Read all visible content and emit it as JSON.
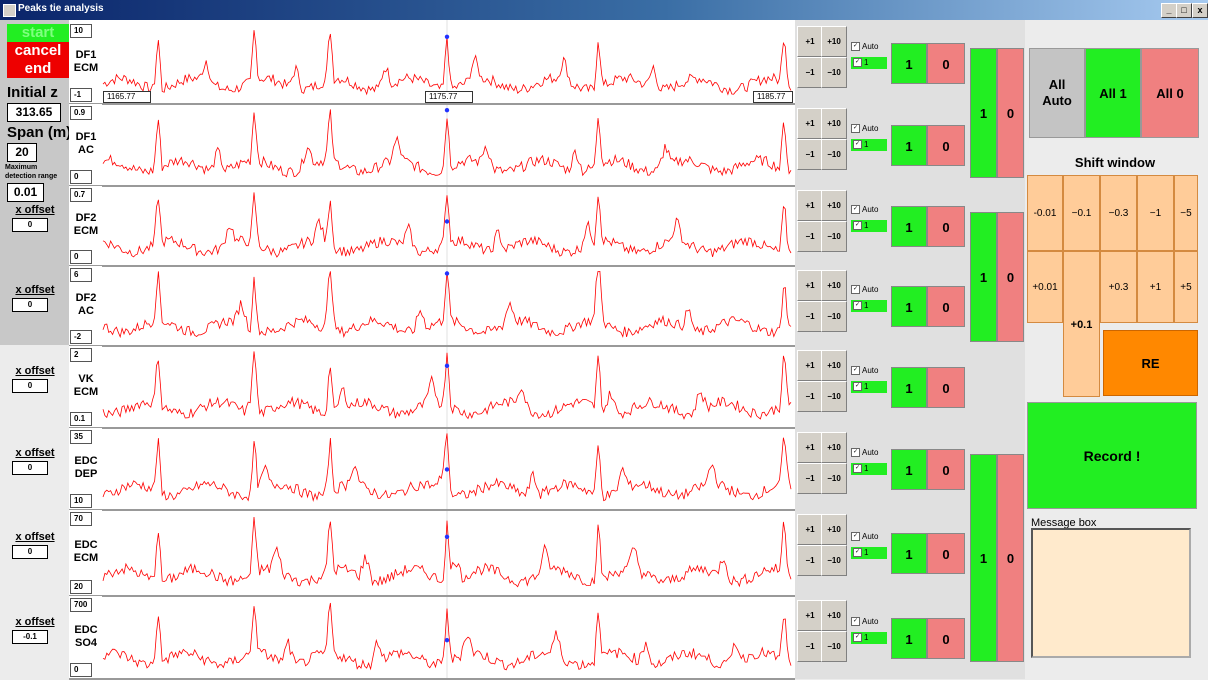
{
  "window": {
    "title": "Peaks tie analysis",
    "minimize": "_",
    "restore": "×",
    "close": "x"
  },
  "controls": {
    "start": "start",
    "cancel": "cancel",
    "end": "end",
    "initial_z_label": "Initial z",
    "initial_z_value": "313.65",
    "span_label": "Span (m)",
    "span_value": "20",
    "max_det_label_1": "Maximum",
    "max_det_label_2": "detection range",
    "max_det_value": "0.01",
    "xoffset_label": "x offset"
  },
  "axis": {
    "ticks": [
      "1165.77",
      "1175.77",
      "1185.77"
    ]
  },
  "channels": [
    {
      "name1": "DF1",
      "name2": "ECM",
      "top": "10",
      "bottom": "-1",
      "xoffset": "",
      "peak_y": 0.15
    },
    {
      "name1": "DF1",
      "name2": "AC",
      "top": "0.9",
      "bottom": "0",
      "xoffset": "",
      "peak_y": 0.03
    },
    {
      "name1": "DF2",
      "name2": "ECM",
      "top": "0.7",
      "bottom": "0",
      "xoffset": "0",
      "peak_y": 0.45
    },
    {
      "name1": "DF2",
      "name2": "AC",
      "top": "6",
      "bottom": "-2",
      "xoffset": "0",
      "peak_y": 0.05
    },
    {
      "name1": "VK",
      "name2": "ECM",
      "top": "2",
      "bottom": "0.1",
      "xoffset": "0",
      "peak_y": 0.22
    },
    {
      "name1": "EDC",
      "name2": "DEP",
      "top": "35",
      "bottom": "10",
      "xoffset": "0",
      "peak_y": 0.52
    },
    {
      "name1": "EDC",
      "name2": "ECM",
      "top": "70",
      "bottom": "20",
      "xoffset": "0",
      "peak_y": 0.3
    },
    {
      "name1": "EDC",
      "name2": "SO4",
      "top": "700",
      "bottom": "0",
      "xoffset": "-0.1",
      "peak_y": 0.55
    }
  ],
  "step_buttons": {
    "p1": "+1",
    "p10": "+10",
    "m1": "−1",
    "m10": "−10"
  },
  "auto_label": "Auto",
  "one_label": "1",
  "on_label": "1",
  "off_label": "0",
  "all": {
    "auto1": "All",
    "auto2": "Auto",
    "one": "All 1",
    "zero": "All 0"
  },
  "shift": {
    "title": "Shift window",
    "row1": [
      "-0.01",
      "−0.1",
      "−0.3",
      "−1",
      "−5"
    ],
    "row2": [
      "+0.01",
      "+0.1",
      "+0.3",
      "+1",
      "+5"
    ],
    "re": "RE"
  },
  "record": "Record !",
  "message_box_label": "Message box",
  "colors": {
    "trace": "#ff0000",
    "marker": "#2233ff",
    "green": "#22ee22",
    "red": "#f08080",
    "orange": "#ff8800"
  }
}
